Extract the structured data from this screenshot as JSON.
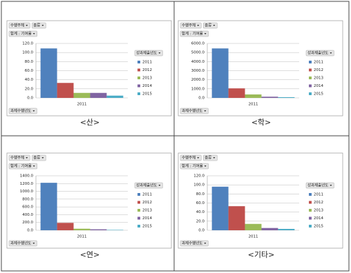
{
  "chart_data": [
    {
      "type": "bar",
      "filters": [
        "수행주체",
        "종류"
      ],
      "value_field": "합계 : 기여율",
      "legend_title": "성과제출년도",
      "axis_field": "과제수행년도",
      "caption": "<산>",
      "categories": [
        "2011"
      ],
      "ylim": [
        0,
        120
      ],
      "yticks": [
        {
          "value": 0,
          "label": "0.0"
        },
        {
          "value": 20,
          "label": "20.0"
        },
        {
          "value": 40,
          "label": "40.0"
        },
        {
          "value": 60,
          "label": "60.0"
        },
        {
          "value": 80,
          "label": "80.0"
        },
        {
          "value": 100,
          "label": "100.0"
        },
        {
          "value": 120,
          "label": "120.0"
        }
      ],
      "grid": true,
      "series": [
        {
          "name": "2011",
          "color": "#4f81bd",
          "values": [
            109
          ]
        },
        {
          "name": "2012",
          "color": "#c0504d",
          "values": [
            33
          ]
        },
        {
          "name": "2013",
          "color": "#9bbb59",
          "values": [
            11
          ]
        },
        {
          "name": "2014",
          "color": "#8064a2",
          "values": [
            11
          ]
        },
        {
          "name": "2015",
          "color": "#4bacc6",
          "values": [
            5
          ]
        }
      ]
    },
    {
      "type": "bar",
      "filters": [
        "수행주체",
        "종류"
      ],
      "value_field": "합계 : 기여율",
      "legend_title": "성과제출년도",
      "axis_field": "과제수행년도",
      "caption": "<학>",
      "categories": [
        "2011"
      ],
      "ylim": [
        0,
        6000
      ],
      "yticks": [
        {
          "value": 0,
          "label": "0.0"
        },
        {
          "value": 1000,
          "label": "1000.0"
        },
        {
          "value": 2000,
          "label": "2000.0"
        },
        {
          "value": 3000,
          "label": "3000.0"
        },
        {
          "value": 4000,
          "label": "4000.0"
        },
        {
          "value": 5000,
          "label": "5000.0"
        },
        {
          "value": 6000,
          "label": "6000.0"
        }
      ],
      "grid": true,
      "series": [
        {
          "name": "2011",
          "color": "#4f81bd",
          "values": [
            5450
          ]
        },
        {
          "name": "2012",
          "color": "#c0504d",
          "values": [
            1050
          ]
        },
        {
          "name": "2013",
          "color": "#9bbb59",
          "values": [
            380
          ]
        },
        {
          "name": "2014",
          "color": "#8064a2",
          "values": [
            130
          ]
        },
        {
          "name": "2015",
          "color": "#4bacc6",
          "values": [
            80
          ]
        }
      ]
    },
    {
      "type": "bar",
      "filters": [
        "수행주체",
        "종류"
      ],
      "value_field": "합계 : 기여율",
      "legend_title": "성과제출년도",
      "axis_field": "과제수행년도",
      "caption": "<연>",
      "categories": [
        "2011"
      ],
      "ylim": [
        0,
        1400
      ],
      "yticks": [
        {
          "value": 0,
          "label": "0.0"
        },
        {
          "value": 200,
          "label": "200.0"
        },
        {
          "value": 400,
          "label": "400.0"
        },
        {
          "value": 600,
          "label": "600.0"
        },
        {
          "value": 800,
          "label": "800.0"
        },
        {
          "value": 1000,
          "label": "1000.0"
        },
        {
          "value": 1200,
          "label": "1200.0"
        },
        {
          "value": 1400,
          "label": "1400.0"
        }
      ],
      "grid": true,
      "series": [
        {
          "name": "2011",
          "color": "#4f81bd",
          "values": [
            1220
          ]
        },
        {
          "name": "2012",
          "color": "#c0504d",
          "values": [
            190
          ]
        },
        {
          "name": "2013",
          "color": "#9bbb59",
          "values": [
            40
          ]
        },
        {
          "name": "2014",
          "color": "#8064a2",
          "values": [
            25
          ]
        },
        {
          "name": "2015",
          "color": "#4bacc6",
          "values": [
            10
          ]
        }
      ]
    },
    {
      "type": "bar",
      "filters": [
        "수행주체",
        "종류"
      ],
      "value_field": "합계 : 기여율",
      "legend_title": "성과제출년도",
      "axis_field": "과제수행년도",
      "caption": "<기타>",
      "categories": [
        "2011"
      ],
      "ylim": [
        0,
        120
      ],
      "yticks": [
        {
          "value": 0,
          "label": "0.0"
        },
        {
          "value": 20,
          "label": "20.0"
        },
        {
          "value": 40,
          "label": "40.0"
        },
        {
          "value": 60,
          "label": "60.0"
        },
        {
          "value": 80,
          "label": "80.0"
        },
        {
          "value": 100,
          "label": "100.0"
        },
        {
          "value": 120,
          "label": "120.0"
        }
      ],
      "grid": true,
      "series": [
        {
          "name": "2011",
          "color": "#4f81bd",
          "values": [
            96
          ]
        },
        {
          "name": "2012",
          "color": "#c0504d",
          "values": [
            53
          ]
        },
        {
          "name": "2013",
          "color": "#9bbb59",
          "values": [
            14
          ]
        },
        {
          "name": "2014",
          "color": "#8064a2",
          "values": [
            5
          ]
        },
        {
          "name": "2015",
          "color": "#4bacc6",
          "values": [
            3
          ]
        }
      ]
    }
  ]
}
